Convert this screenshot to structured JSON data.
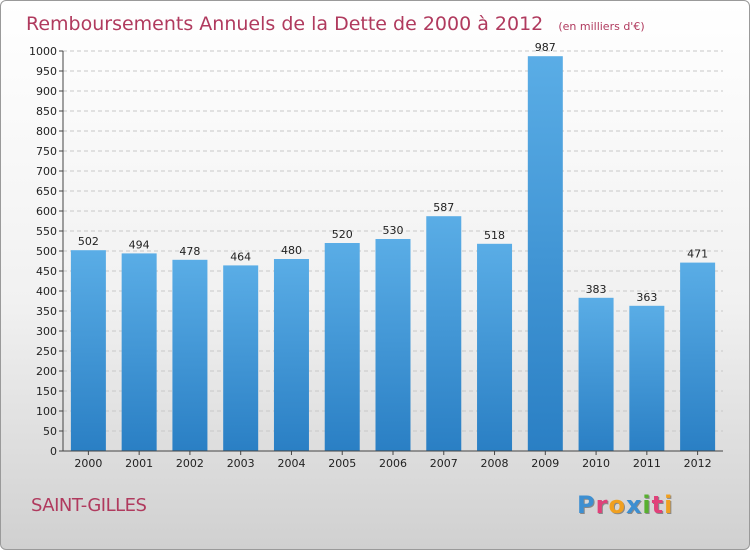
{
  "page": {
    "title": "Remboursements Annuels de la Dette de 2000 à 2012",
    "unit": "(en milliers d'€)",
    "commune": "SAINT-GILLES",
    "logo_text": "Proxiti",
    "colors": {
      "bar_top": "#5aade6",
      "bar_bottom": "#2a7fc4",
      "title": "#b03a5e"
    }
  },
  "chart_data": {
    "type": "bar",
    "title": "Remboursements Annuels de la Dette de 2000 à 2012",
    "subtitle": "(en milliers d'€)",
    "categories": [
      "2000",
      "2001",
      "2002",
      "2003",
      "2004",
      "2005",
      "2006",
      "2007",
      "2008",
      "2009",
      "2010",
      "2011",
      "2012"
    ],
    "values": [
      502,
      494,
      478,
      464,
      480,
      520,
      530,
      587,
      518,
      987,
      383,
      363,
      471
    ],
    "ylim": [
      0,
      1000
    ],
    "ytick_step": 50,
    "grid": true
  }
}
